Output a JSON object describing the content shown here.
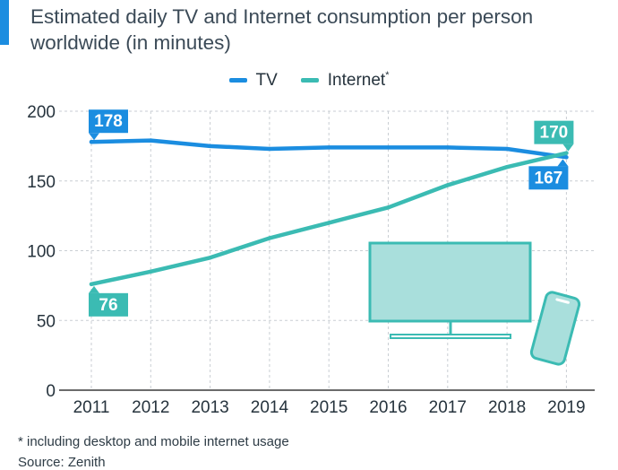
{
  "title": "Estimated daily TV and Internet consumption per person worldwide (in minutes)",
  "footnote": "* including desktop and mobile internet usage",
  "source": "Source: Zenith",
  "colors": {
    "accent": "#1b8de0",
    "tv": "#1b8de0",
    "internet": "#3bbbb3",
    "device": "#3bbbb3",
    "deviceFill": "#a9dfdc"
  },
  "icons": [
    "television-icon",
    "smartphone-icon"
  ],
  "chart_data": {
    "type": "line",
    "x": [
      "2011",
      "2012",
      "2013",
      "2014",
      "2015",
      "2016",
      "2017",
      "2018",
      "2019"
    ],
    "ylim": [
      0,
      200
    ],
    "yticks": [
      "0",
      "50",
      "100",
      "150",
      "200"
    ],
    "grid": true,
    "legend_position": "top-center",
    "series": [
      {
        "name": "TV",
        "legend_label": "TV",
        "values": [
          178,
          179,
          175,
          173,
          174,
          174,
          174,
          173,
          167
        ]
      },
      {
        "name": "Internet",
        "legend_label": "Internet",
        "legend_marker": "*",
        "values": [
          76,
          85,
          95,
          109,
          120,
          131,
          147,
          160,
          170
        ]
      }
    ],
    "annotations": [
      {
        "series": "TV",
        "x": "2011",
        "label": "178"
      },
      {
        "series": "TV",
        "x": "2019",
        "label": "167"
      },
      {
        "series": "Internet",
        "x": "2011",
        "label": "76"
      },
      {
        "series": "Internet",
        "x": "2019",
        "label": "170"
      }
    ]
  }
}
